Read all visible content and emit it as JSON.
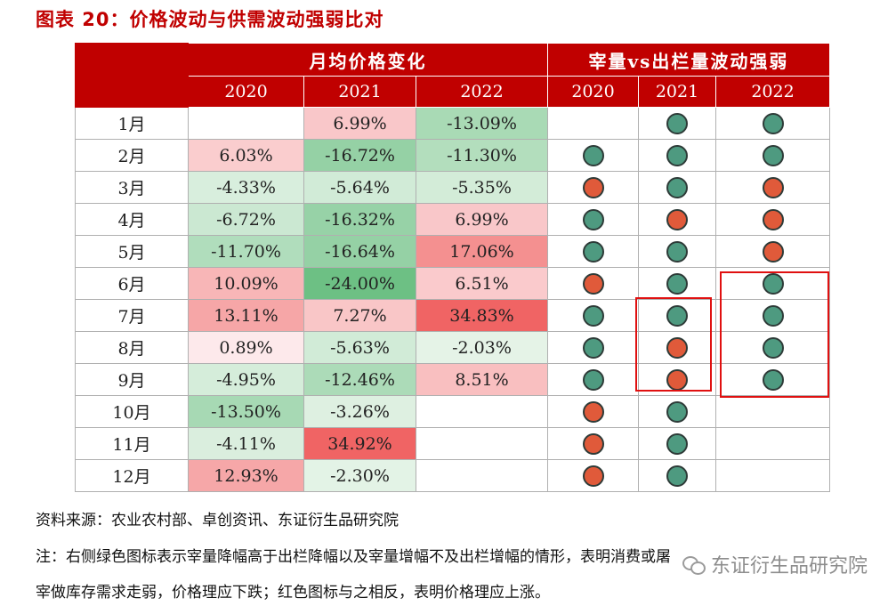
{
  "title": "图表 20：价格波动与供需波动强弱比对",
  "header": {
    "group_price": "月均价格变化",
    "group_supply": "宰量vs出栏量波动强弱",
    "price_years": [
      "2020",
      "2021",
      "2022"
    ],
    "supply_years": [
      "2020",
      "2021",
      "2022"
    ]
  },
  "rows": [
    {
      "month": "1月",
      "p2020": "",
      "p2021": "6.99%",
      "p2022": "-13.09%",
      "s2020": "",
      "s2021": "g",
      "s2022": "g"
    },
    {
      "month": "2月",
      "p2020": "6.03%",
      "p2021": "-16.72%",
      "p2022": "-11.30%",
      "s2020": "g",
      "s2021": "g",
      "s2022": "g"
    },
    {
      "month": "3月",
      "p2020": "-4.33%",
      "p2021": "-5.64%",
      "p2022": "-5.35%",
      "s2020": "r",
      "s2021": "g",
      "s2022": "r"
    },
    {
      "month": "4月",
      "p2020": "-6.72%",
      "p2021": "-16.32%",
      "p2022": "6.99%",
      "s2020": "g",
      "s2021": "r",
      "s2022": "r"
    },
    {
      "month": "5月",
      "p2020": "-11.70%",
      "p2021": "-16.64%",
      "p2022": "17.06%",
      "s2020": "g",
      "s2021": "g",
      "s2022": "r"
    },
    {
      "month": "6月",
      "p2020": "10.09%",
      "p2021": "-24.00%",
      "p2022": "6.51%",
      "s2020": "r",
      "s2021": "g",
      "s2022": "g"
    },
    {
      "month": "7月",
      "p2020": "13.11%",
      "p2021": "7.27%",
      "p2022": "34.83%",
      "s2020": "g",
      "s2021": "g",
      "s2022": "g"
    },
    {
      "month": "8月",
      "p2020": "0.89%",
      "p2021": "-5.63%",
      "p2022": "-2.03%",
      "s2020": "g",
      "s2021": "r",
      "s2022": "g"
    },
    {
      "month": "9月",
      "p2020": "-4.95%",
      "p2021": "-12.46%",
      "p2022": "8.51%",
      "s2020": "g",
      "s2021": "r",
      "s2022": "g"
    },
    {
      "month": "10月",
      "p2020": "-13.50%",
      "p2021": "-3.26%",
      "p2022": "",
      "s2020": "r",
      "s2021": "g",
      "s2022": ""
    },
    {
      "month": "11月",
      "p2020": "-4.11%",
      "p2021": "34.92%",
      "p2022": "",
      "s2020": "r",
      "s2021": "g",
      "s2022": ""
    },
    {
      "month": "12月",
      "p2020": "12.93%",
      "p2021": "-2.30%",
      "p2022": "",
      "s2020": "r",
      "s2021": "g",
      "s2022": ""
    }
  ],
  "colors": {
    "header_red": "#c00000",
    "dot_green": "#4e9a80",
    "dot_red": "#e05a3a",
    "neg_strong": "#6cbf82",
    "pos_strong": "#f06a6a",
    "highlight_border": "#e01010"
  },
  "source": "资料来源：农业农村部、卓创资讯、东证衍生品研究院",
  "note_line1": "注：右侧绿色图标表示宰量降幅高于出栏降幅以及宰量增幅不及出栏增幅的情形，表明消费或屠",
  "note_line2": "宰做库存需求走弱，价格理应下跌；红色图标与之相反，表明价格理应上涨。",
  "watermark": "东证衍生品研究院"
}
